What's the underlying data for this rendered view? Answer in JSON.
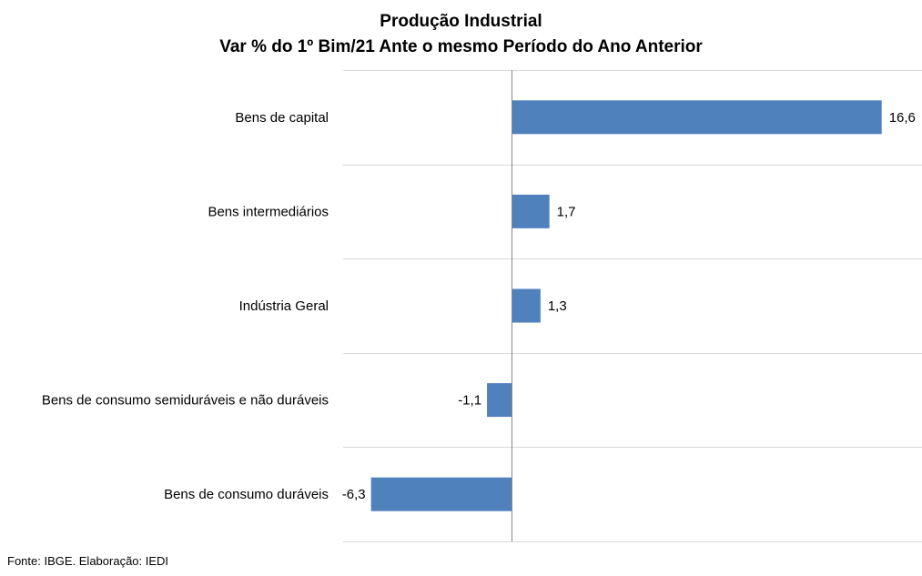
{
  "chart_data": {
    "type": "bar",
    "orientation": "horizontal",
    "title": "Produção Industrial",
    "subtitle": "Var % do 1º Bim/21 Ante o mesmo Período do Ano Anterior",
    "categories": [
      "Bens de capital",
      "Bens intermediários",
      "Indústria Geral",
      "Bens de consumo semiduráveis e não duráveis",
      "Bens de consumo duráveis"
    ],
    "values": [
      16.6,
      1.7,
      1.3,
      -1.1,
      -6.3
    ],
    "value_labels": [
      "16,6",
      "1,7",
      "1,3",
      "-1,1",
      "-6,3"
    ],
    "xlim": [
      -7.5,
      18.5
    ],
    "grid": "horizontal separators",
    "legend": "none",
    "bar_color": "#4F81BD"
  },
  "source": "Fonte: IBGE. Elaboração: IEDI"
}
